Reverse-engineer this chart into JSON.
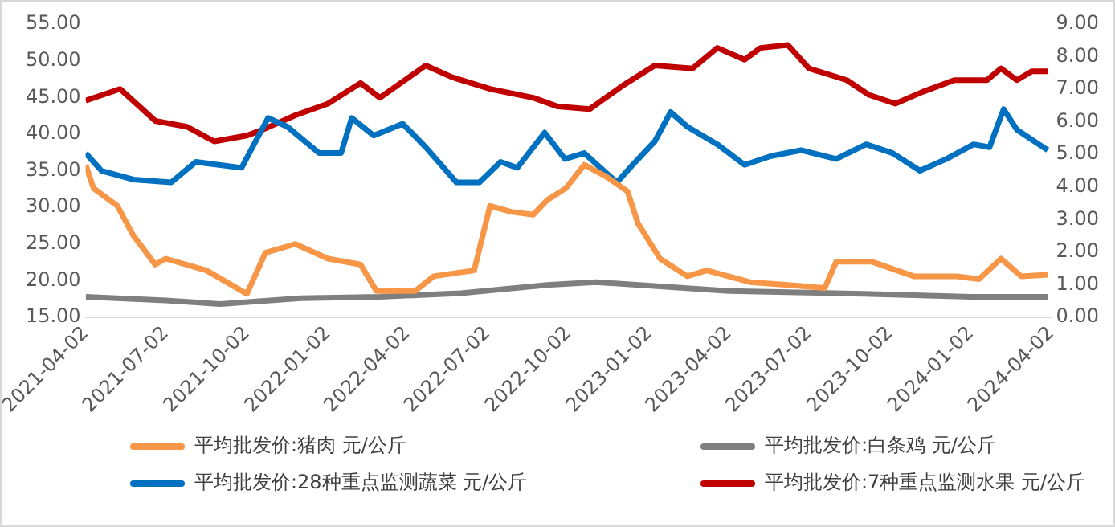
{
  "chart_data": {
    "type": "line",
    "legend": "bottom",
    "grid": false,
    "marker": "none",
    "line_style": "solid",
    "xlim": [
      "2021-04-02",
      "2024-04-02"
    ],
    "xticks": [
      "2021-04-02",
      "2021-07-02",
      "2021-10-02",
      "2022-01-02",
      "2022-04-02",
      "2022-07-02",
      "2022-10-02",
      "2023-01-02",
      "2023-04-02",
      "2023-07-02",
      "2023-10-02",
      "2024-01-02",
      "2024-04-02"
    ],
    "ylim": [
      15,
      55
    ],
    "yticks": [
      {
        "value": 15,
        "label": "15.00"
      },
      {
        "value": 20,
        "label": "20.00"
      },
      {
        "value": 25,
        "label": "25.00"
      },
      {
        "value": 30,
        "label": "30.00"
      },
      {
        "value": 35,
        "label": "35.00"
      },
      {
        "value": 40,
        "label": "40.00"
      },
      {
        "value": 45,
        "label": "45.00"
      },
      {
        "value": 50,
        "label": "50.00"
      },
      {
        "value": 55,
        "label": "55.00"
      }
    ],
    "y2lim": [
      0,
      9
    ],
    "y2ticks": [
      {
        "value": 0,
        "label": "0.00"
      },
      {
        "value": 1,
        "label": "1.00"
      },
      {
        "value": 2,
        "label": "2.00"
      },
      {
        "value": 3,
        "label": "3.00"
      },
      {
        "value": 4,
        "label": "4.00"
      },
      {
        "value": 5,
        "label": "5.00"
      },
      {
        "value": 6,
        "label": "6.00"
      },
      {
        "value": 7,
        "label": "7.00"
      },
      {
        "value": 8,
        "label": "8.00"
      },
      {
        "value": 9,
        "label": "9.00"
      }
    ],
    "series": [
      {
        "name": "平均批发价:猪肉 元/公斤",
        "color": "#f79646",
        "x": [
          "2021-04-02",
          "2021-04-11",
          "2021-05-08",
          "2021-05-26",
          "2021-06-20",
          "2021-07-02",
          "2021-08-17",
          "2021-10-02",
          "2021-10-23",
          "2021-11-26",
          "2022-01-02",
          "2022-02-08",
          "2022-02-26",
          "2022-04-11",
          "2022-05-02",
          "2022-06-17",
          "2022-07-05",
          "2022-07-29",
          "2022-08-23",
          "2022-09-08",
          "2022-09-29",
          "2022-10-20",
          "2022-11-14",
          "2022-12-08",
          "2022-12-20",
          "2023-01-14",
          "2023-02-14",
          "2023-03-08",
          "2023-04-26",
          "2023-06-08",
          "2023-07-20",
          "2023-08-02",
          "2023-09-11",
          "2023-10-29",
          "2023-12-17",
          "2024-01-11",
          "2024-02-05",
          "2024-02-28",
          "2024-03-29"
        ],
        "values": [
          35.8,
          32.6,
          30.2,
          26.2,
          22.2,
          23,
          21.4,
          18.2,
          23.8,
          25,
          23,
          22.2,
          18.6,
          18.6,
          20.6,
          21.4,
          30.2,
          29.4,
          29,
          31,
          32.6,
          35.8,
          34.2,
          32.2,
          27.8,
          23,
          20.6,
          21.4,
          19.8,
          19.4,
          19,
          22.6,
          22.6,
          20.6,
          20.6,
          20.2,
          23,
          20.6,
          20.8
        ]
      },
      {
        "name": "平均批发价:白条鸡 元/公斤",
        "color": "#7f7f7f",
        "x": [
          "2021-04-02",
          "2021-07-02",
          "2021-09-02",
          "2021-12-02",
          "2022-03-02",
          "2022-06-02",
          "2022-09-08",
          "2022-11-02",
          "2023-04-02",
          "2023-09-02",
          "2024-01-02",
          "2024-03-29"
        ],
        "values": [
          17.8,
          17.3,
          16.8,
          17.6,
          17.8,
          18.3,
          19.4,
          19.8,
          18.6,
          18.2,
          17.8,
          17.8
        ]
      },
      {
        "name": "平均批发价:28种重点监测蔬菜 元/公斤",
        "color": "#0070c0",
        "axis": "y2",
        "x": [
          "2021-04-02",
          "2021-04-20",
          "2021-05-26",
          "2021-07-08",
          "2021-08-05",
          "2021-09-26",
          "2021-10-26",
          "2021-11-17",
          "2021-12-23",
          "2022-01-17",
          "2022-01-29",
          "2022-02-23",
          "2022-03-28",
          "2022-04-23",
          "2022-05-28",
          "2022-06-23",
          "2022-07-17",
          "2022-08-05",
          "2022-09-05",
          "2022-09-28",
          "2022-10-20",
          "2022-11-26",
          "2022-12-14",
          "2023-01-08",
          "2023-01-26",
          "2023-02-14",
          "2023-03-20",
          "2023-04-20",
          "2023-05-20",
          "2023-06-23",
          "2023-08-02",
          "2023-09-05",
          "2023-10-05",
          "2023-11-05",
          "2023-12-05",
          "2024-01-05",
          "2024-01-23",
          "2024-02-08",
          "2024-02-23",
          "2024-03-29"
        ],
        "values": [
          5.04,
          4.5,
          4.23,
          4.14,
          4.77,
          4.59,
          6.12,
          5.85,
          5.04,
          5.04,
          6.12,
          5.58,
          5.94,
          5.22,
          4.14,
          4.14,
          4.77,
          4.59,
          5.67,
          4.86,
          5.04,
          4.14,
          4.68,
          5.4,
          6.3,
          5.85,
          5.31,
          4.68,
          4.95,
          5.13,
          4.86,
          5.31,
          5.04,
          4.5,
          4.86,
          5.31,
          5.22,
          6.39,
          5.76,
          5.13
        ]
      },
      {
        "name": "平均批发价:7种重点监测水果 元/公斤",
        "color": "#c00000",
        "axis": "y2",
        "x": [
          "2021-04-02",
          "2021-05-11",
          "2021-06-20",
          "2021-07-26",
          "2021-08-26",
          "2021-10-02",
          "2021-10-20",
          "2021-11-26",
          "2022-01-02",
          "2022-02-08",
          "2022-03-02",
          "2022-04-23",
          "2022-05-23",
          "2022-07-05",
          "2022-08-23",
          "2022-09-20",
          "2022-10-26",
          "2022-12-02",
          "2023-01-08",
          "2023-02-20",
          "2023-03-20",
          "2023-04-20",
          "2023-05-08",
          "2023-06-08",
          "2023-07-02",
          "2023-08-14",
          "2023-09-08",
          "2023-10-08",
          "2023-11-08",
          "2023-12-14",
          "2024-01-20",
          "2024-02-05",
          "2024-02-23",
          "2024-03-11",
          "2024-03-29"
        ],
        "values": [
          6.65,
          7.01,
          6.03,
          5.85,
          5.4,
          5.58,
          5.76,
          6.2,
          6.56,
          7.19,
          6.74,
          7.73,
          7.37,
          7.01,
          6.74,
          6.47,
          6.39,
          7.1,
          7.73,
          7.64,
          8.27,
          7.91,
          8.27,
          8.36,
          7.64,
          7.28,
          6.83,
          6.56,
          6.92,
          7.28,
          7.28,
          7.64,
          7.28,
          7.55,
          7.55
        ]
      }
    ]
  }
}
